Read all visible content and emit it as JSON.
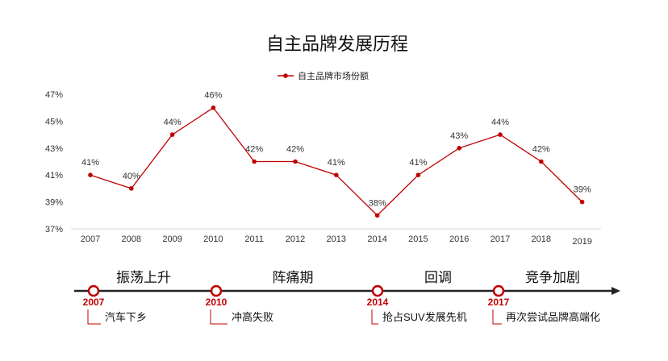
{
  "chart_data": {
    "type": "line",
    "title": "自主品牌发展历程",
    "legend": {
      "position": "top-center",
      "entries": [
        "自主品牌市场份额"
      ]
    },
    "grid": false,
    "y_ticks": [
      "37%",
      "39%",
      "41%",
      "43%",
      "45%",
      "47%"
    ],
    "ylim": [
      37,
      47
    ],
    "categories": [
      "2007",
      "2008",
      "2009",
      "2010",
      "2011",
      "2012",
      "2013",
      "2014",
      "2015",
      "2016",
      "2017",
      "2018",
      "2019"
    ],
    "series": [
      {
        "name": "自主品牌市场份额",
        "color": "#c00000",
        "values": [
          41,
          40,
          44,
          46,
          42,
          42,
          41,
          38,
          41,
          43,
          44,
          42,
          39
        ],
        "labels": [
          "41%",
          "40%",
          "44%",
          "46%",
          "42%",
          "42%",
          "41%",
          "38%",
          "41%",
          "43%",
          "44%",
          "42%",
          "39%"
        ]
      }
    ]
  },
  "timeline": {
    "line_color": "#222222",
    "marker_color": "#c00000",
    "phases": [
      "振荡上升",
      "阵痛期",
      "回调",
      "竞争加剧"
    ],
    "milestones": [
      {
        "year": "2007",
        "event": "汽车下乡"
      },
      {
        "year": "2010",
        "event": "冲高失败"
      },
      {
        "year": "2014",
        "event": "抢占SUV发展先机"
      },
      {
        "year": "2017",
        "event": "再次尝试品牌高端化"
      }
    ]
  }
}
